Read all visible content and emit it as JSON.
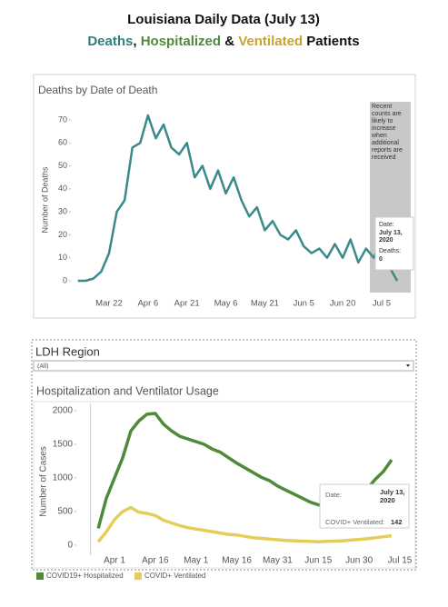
{
  "header": {
    "title": "Louisiana Daily Data (July 13)",
    "subtitle_parts": [
      {
        "text": "Deaths",
        "color": "#2e7f80"
      },
      {
        "text": ", ",
        "color": "#111111"
      },
      {
        "text": "Hospitalized",
        "color": "#4f8a3a"
      },
      {
        "text": " & ",
        "color": "#111111"
      },
      {
        "text": "Ventilated",
        "color": "#c9a22a"
      },
      {
        "text": " Patients",
        "color": "#111111"
      }
    ]
  },
  "chart_data": [
    {
      "type": "line",
      "title": "Deaths by Date of Death",
      "y_label": "Number of Deaths",
      "categories": [
        null,
        null,
        null,
        null,
        "Mar 22",
        null,
        null,
        null,
        null,
        "Apr 6",
        null,
        null,
        null,
        null,
        "Apr 21",
        null,
        null,
        null,
        null,
        "May 6",
        null,
        null,
        null,
        null,
        "May 21",
        null,
        null,
        null,
        null,
        "Jun 5",
        null,
        null,
        null,
        null,
        "Jun 20",
        null,
        null,
        null,
        null,
        "Jul 5",
        null,
        null
      ],
      "values": [
        0,
        0,
        1,
        4,
        12,
        30,
        35,
        58,
        60,
        72,
        62,
        68,
        58,
        55,
        60,
        45,
        50,
        40,
        48,
        38,
        45,
        35,
        28,
        32,
        22,
        26,
        20,
        18,
        22,
        15,
        12,
        14,
        10,
        16,
        10,
        18,
        8,
        14,
        10,
        18,
        6,
        0
      ],
      "color": "#3a8a8a",
      "ylim": [
        -4,
        76
      ],
      "yticks": [
        0,
        10,
        20,
        30,
        40,
        50,
        60,
        70
      ],
      "annotation": "Recent counts are likely to increase when additional reports are received",
      "tooltip": {
        "date_label": "Date:",
        "date": "July 13, 2020",
        "value_label": "Deaths:",
        "value": 0
      }
    },
    {
      "type": "line",
      "filter": {
        "label": "LDH Region",
        "value": "(All)"
      },
      "title": "Hospitalization and Ventilator Usage",
      "y_label": "Number of Cases",
      "categories": [
        null,
        null,
        "Apr 1",
        null,
        null,
        null,
        null,
        "Apr 16",
        null,
        null,
        null,
        null,
        "May 1",
        null,
        null,
        null,
        null,
        "May 16",
        null,
        null,
        null,
        null,
        "May 31",
        null,
        null,
        null,
        null,
        "Jun 15",
        null,
        null,
        null,
        null,
        "Jun 30",
        null,
        null,
        null,
        null,
        "Jul 15"
      ],
      "series": [
        {
          "name": "COVID19+ Hospitalized",
          "color": "#4f8a3a",
          "values": [
            250,
            700,
            1000,
            1300,
            1700,
            1850,
            1950,
            1960,
            1800,
            1700,
            1620,
            1580,
            1540,
            1500,
            1430,
            1380,
            1300,
            1220,
            1150,
            1080,
            1010,
            960,
            880,
            820,
            760,
            700,
            640,
            600,
            570,
            560,
            580,
            640,
            720,
            840,
            980,
            1100,
            1270,
            null
          ]
        },
        {
          "name": "COVID+ Ventilated",
          "color": "#e6cd5a",
          "values": [
            50,
            200,
            380,
            500,
            560,
            490,
            470,
            440,
            370,
            330,
            290,
            260,
            240,
            220,
            200,
            180,
            160,
            150,
            130,
            110,
            100,
            90,
            80,
            70,
            65,
            60,
            55,
            50,
            55,
            60,
            65,
            75,
            85,
            95,
            110,
            125,
            140,
            null
          ]
        }
      ],
      "ylim": [
        -150,
        2100
      ],
      "yticks": [
        0,
        500,
        1000,
        1500,
        2000
      ],
      "tooltip": {
        "date_label": "Date:",
        "date": "July 13, 2020",
        "value_label": "COVID+ Ventilated:",
        "value": 142
      }
    }
  ]
}
